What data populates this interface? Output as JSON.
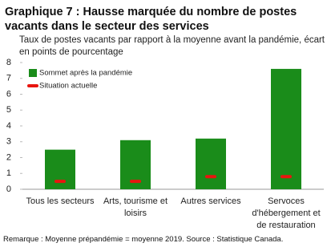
{
  "chart_data": {
    "type": "bar",
    "title": "Graphique 7 : Hausse marquée du nombre de postes vacants  dans le secteur des services",
    "subtitle": "Taux de postes vacants par rapport à la moyenne avant la pandémie, écart en points de pourcentage",
    "categories": [
      "Tous les secteurs",
      "Arts, tourisme et loisirs",
      "Autres services",
      "Servoces d'hébergement et de restauration"
    ],
    "series": [
      {
        "name": "Sommet après la pandémie",
        "color": "#1a8c1a",
        "kind": "bar",
        "values": [
          2.5,
          3.1,
          3.2,
          7.6
        ]
      },
      {
        "name": "Situation actuelle",
        "color": "#e8150f",
        "kind": "dash",
        "values": [
          0.5,
          0.5,
          0.8,
          0.8
        ]
      }
    ],
    "ylim": [
      0,
      8
    ],
    "yticks": [
      0,
      1,
      2,
      3,
      4,
      5,
      6,
      7,
      8
    ],
    "grid": false,
    "legend": "top-left",
    "note": "Remarque : Moyenne prépandémie = moyenne 2019. Source : Statistique Canada."
  }
}
